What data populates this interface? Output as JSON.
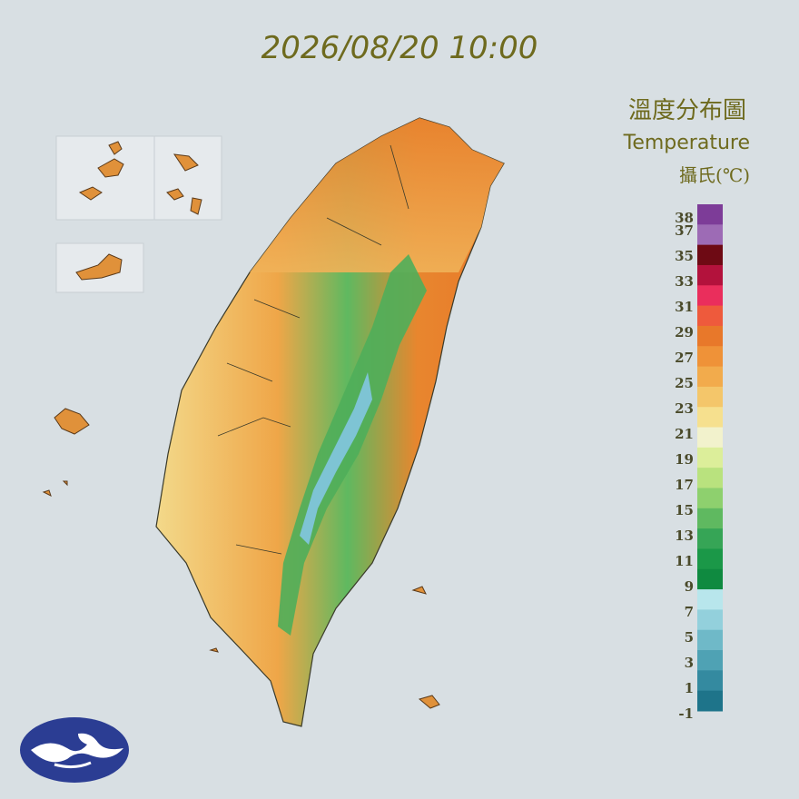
{
  "header": {
    "title": "2026/08/20 10:00"
  },
  "legend": {
    "title": "溫度分布圖",
    "subtitle": "Temperature",
    "unit": "攝氏(℃)",
    "labels": [
      38,
      37,
      35,
      33,
      31,
      29,
      27,
      25,
      23,
      21,
      19,
      17,
      15,
      13,
      11,
      9,
      7,
      5,
      3,
      1,
      -1
    ],
    "colors": [
      "#7d3c98",
      "#9d6bb5",
      "#6e0a14",
      "#b3123c",
      "#ea2e5c",
      "#ee5a3c",
      "#e8782a",
      "#ef9238",
      "#f2ab4c",
      "#f4c66a",
      "#f6e08e",
      "#f2f2cc",
      "#dcee9a",
      "#b9e27e",
      "#8ed06e",
      "#5fb960",
      "#36a556",
      "#1b9848",
      "#0f8a40",
      "#b8e6ec",
      "#93d0dc",
      "#6fb9c8",
      "#4fa2b4",
      "#348aa0",
      "#1e748a"
    ]
  }
}
